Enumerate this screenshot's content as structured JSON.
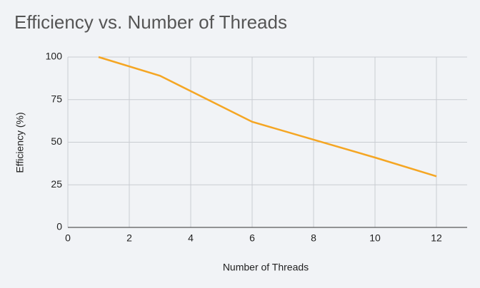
{
  "chart_data": {
    "type": "line",
    "title": "Efficiency vs. Number of Threads",
    "x_label": "Number of Threads",
    "y_label": "Efficiency (%)",
    "x": [
      1,
      3,
      6,
      8,
      10,
      12
    ],
    "series": [
      {
        "color": "#f5a623",
        "values": [
          100,
          89,
          62,
          51.5,
          41,
          30
        ]
      }
    ],
    "xlim": [
      0,
      13
    ],
    "xticks": [
      0,
      2,
      4,
      6,
      8,
      10,
      12
    ],
    "ylim": [
      0,
      100
    ],
    "yticks": [
      0,
      25,
      50,
      75,
      100
    ],
    "grid": true
  }
}
